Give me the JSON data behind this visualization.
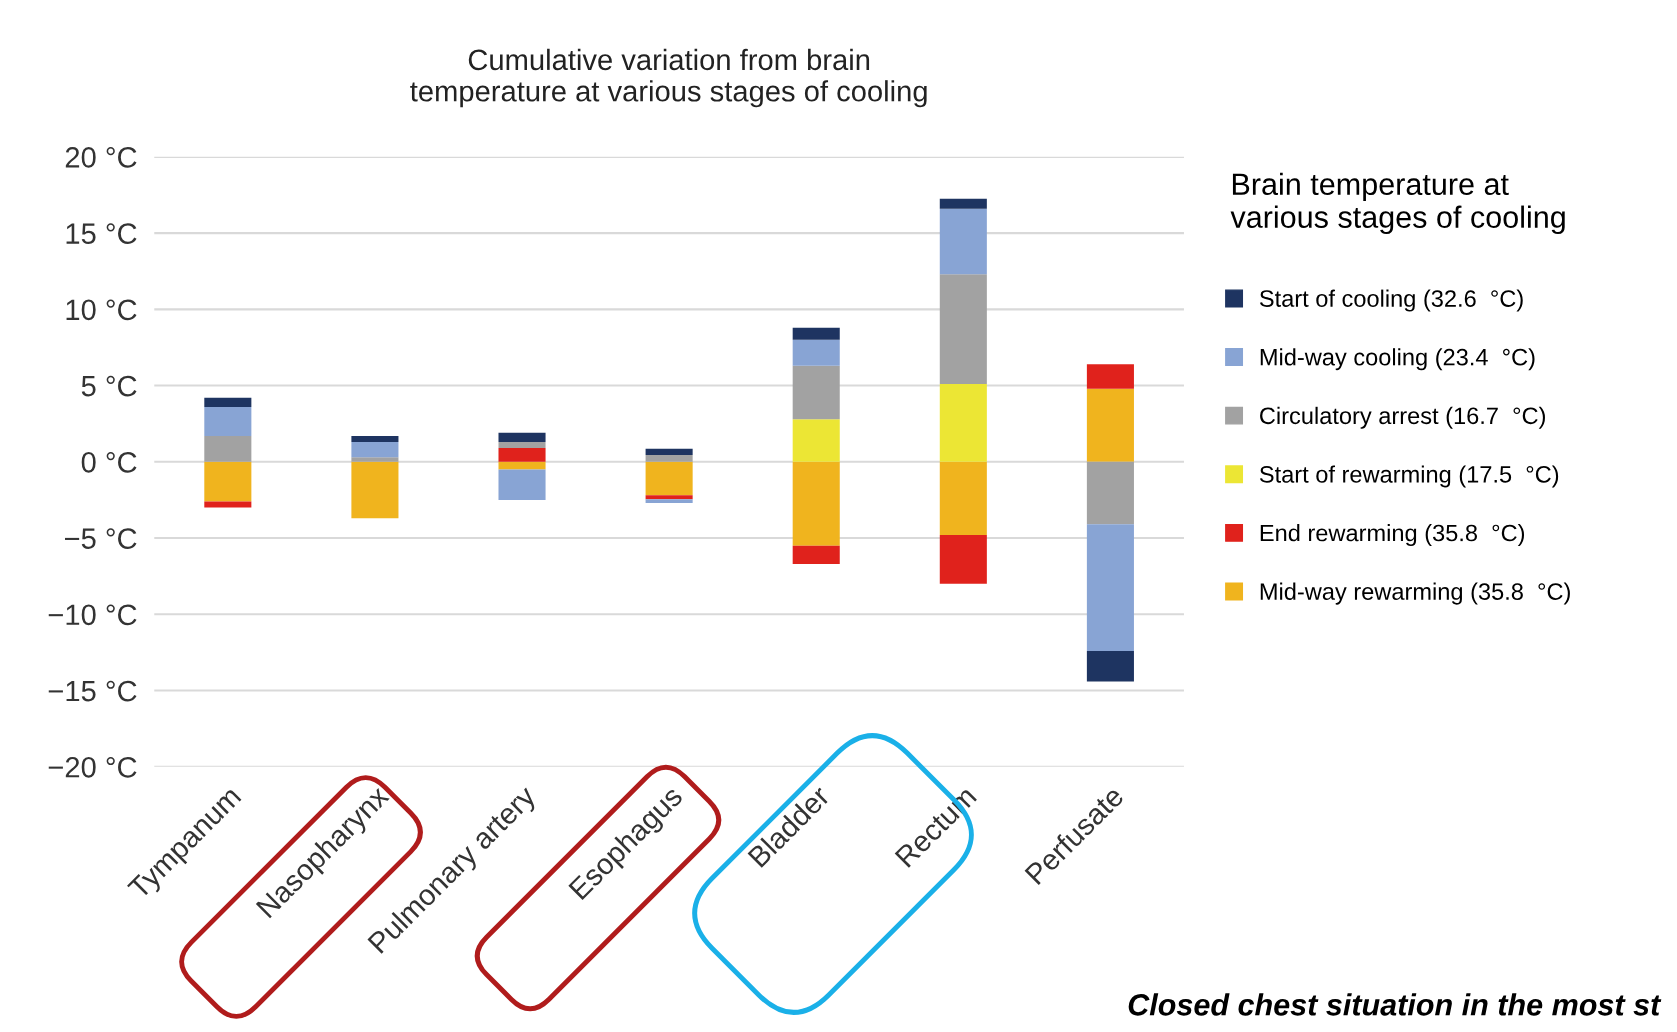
{
  "chart_data": {
    "type": "bar",
    "stacked": true,
    "title": "Cumulative variation from brain\ntemperature at various stages of cooling",
    "categories": [
      "Tympanum",
      "Nasopharynx",
      "Pulmonary artery",
      "Esophagus",
      "Bladder",
      "Rectum",
      "Perfusate"
    ],
    "series": [
      {
        "name": "Mid-way rewarming (35.8  °C)",
        "color": "#f0b41e",
        "values": [
          -2.6,
          -3.7,
          -0.5,
          -2.2,
          -5.5,
          -4.8,
          4.8
        ]
      },
      {
        "name": "End rewarming (35.8  °C)",
        "color": "#e0221c",
        "values": [
          -0.4,
          0,
          0.9,
          -0.25,
          -1.2,
          -3.2,
          1.6
        ]
      },
      {
        "name": "Start of rewarming (17.5  °C)",
        "color": "#ece634",
        "values": [
          0,
          0,
          0,
          0,
          2.8,
          5.1,
          0
        ]
      },
      {
        "name": "Circulatory arrest (16.7  °C)",
        "color": "#a2a2a2",
        "values": [
          1.7,
          0.3,
          0.4,
          0.45,
          3.5,
          7.2,
          -4.1
        ]
      },
      {
        "name": "Mid-way cooling (23.4  °C)",
        "color": "#88a4d4",
        "values": [
          1.9,
          1.0,
          -2.0,
          -0.25,
          1.7,
          4.3,
          -8.3
        ]
      },
      {
        "name": "Start of cooling (32.6  °C)",
        "color": "#1e3461",
        "values": [
          0.6,
          0.4,
          0.6,
          0.4,
          0.8,
          0.65,
          -2.0
        ]
      }
    ],
    "ylim": [
      -20,
      20
    ],
    "yticks": [
      {
        "value": -20,
        "label": "−20 °C"
      },
      {
        "value": -15,
        "label": "−15 °C"
      },
      {
        "value": -10,
        "label": "−10 °C"
      },
      {
        "value": -5,
        "label": "−5 °C"
      },
      {
        "value": 0,
        "label": "0 °C"
      },
      {
        "value": 5,
        "label": "5 °C"
      },
      {
        "value": 10,
        "label": "10 °C"
      },
      {
        "value": 15,
        "label": "15 °C"
      },
      {
        "value": 20,
        "label": "20 °C"
      }
    ],
    "grid": "y",
    "legend": "right",
    "legend_title": "Brain temperature at\nvarious stages of cooling",
    "annotations": [
      "Closed chest situation in the most st"
    ]
  }
}
